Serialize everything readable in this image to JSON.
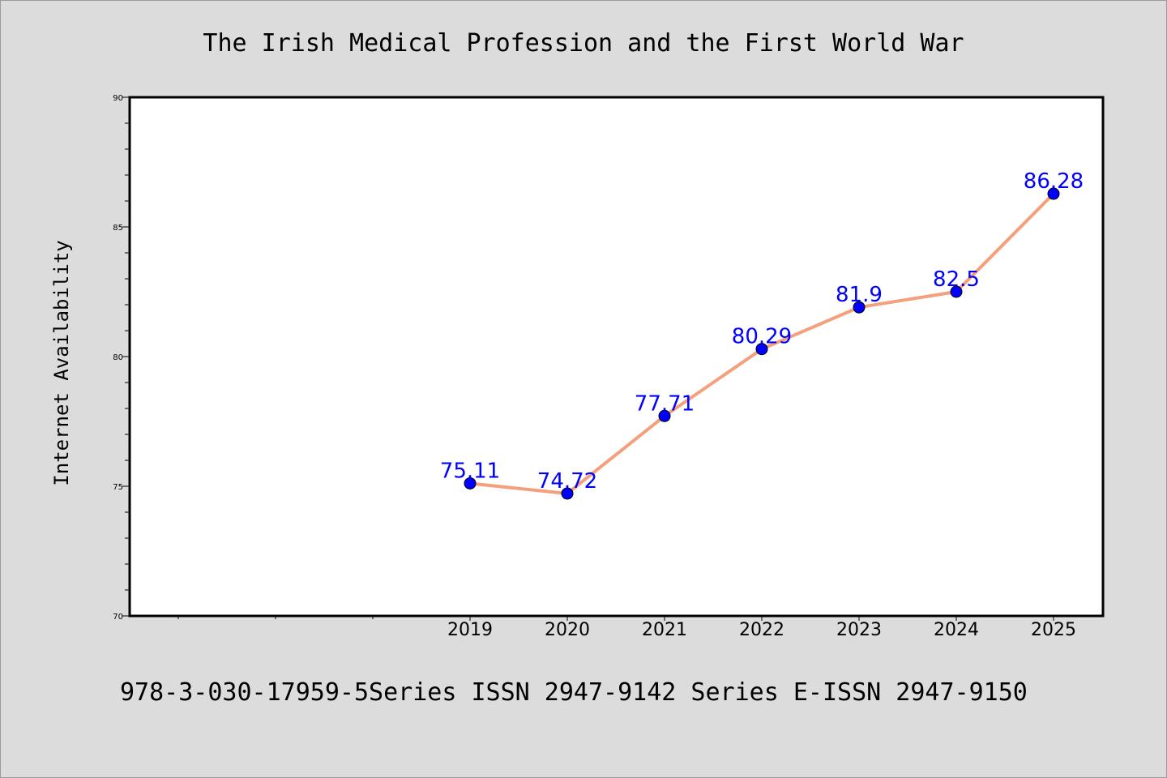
{
  "colors": {
    "background": "#dcdcdc",
    "plot_background": "#ffffff",
    "line": "#f4a07c",
    "marker": "#0000ff",
    "data_label": "#0000ff"
  },
  "chart_data": {
    "type": "line",
    "title": "The Irish Medical Profession and the First World War",
    "ylabel": "Internet Availability",
    "xlabel": "",
    "ylim": [
      70,
      90
    ],
    "yticks": [
      "70",
      "75",
      "80",
      "85",
      "90"
    ],
    "categories": [
      "2019",
      "2020",
      "2021",
      "2022",
      "2023",
      "2024",
      "2025"
    ],
    "values": [
      75.11,
      74.72,
      77.71,
      80.29,
      81.9,
      82.5,
      86.28
    ],
    "data_labels": [
      "75.11",
      "74.72",
      "77.71",
      "80.29",
      "81.9",
      "82.5",
      "86.28"
    ],
    "grid": false,
    "marker": "circle"
  },
  "footer": "978-3-030-17959-5Series ISSN 2947-9142 Series E-ISSN 2947-9150"
}
